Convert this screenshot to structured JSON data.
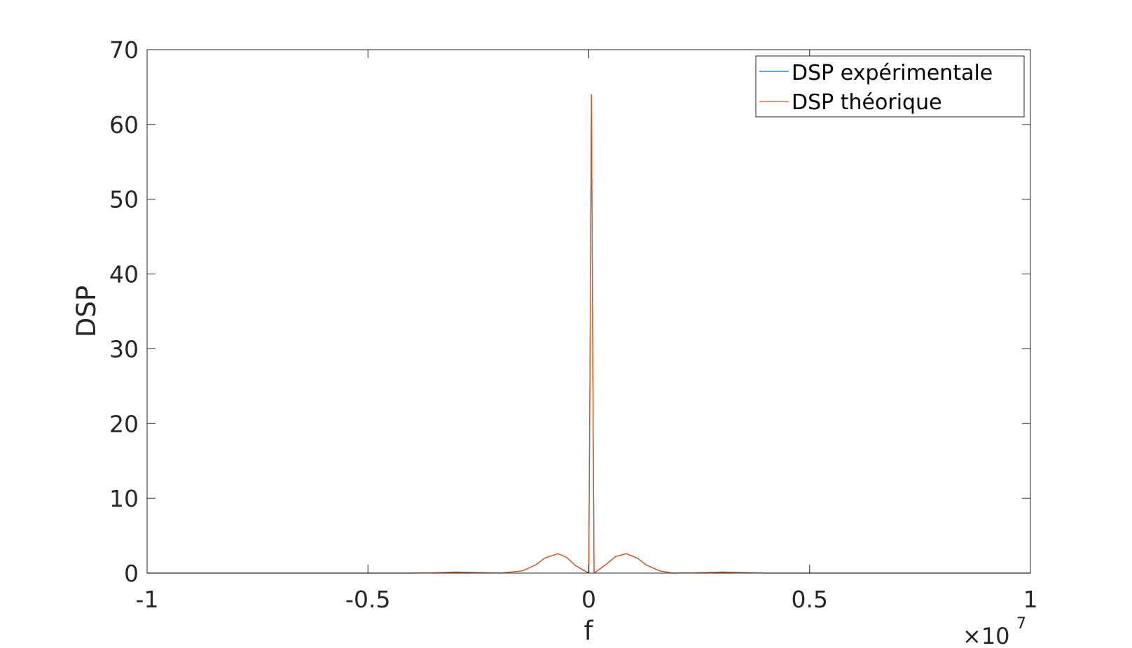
{
  "chart_data": {
    "type": "line",
    "xlabel": "f",
    "ylabel": "DSP",
    "x_exponent_label": {
      "times": "×10",
      "power": "7"
    },
    "xlim": [
      -1,
      1
    ],
    "ylim": [
      0,
      70
    ],
    "x_unit_multiplier": 10000000,
    "xticks": [
      -1,
      -0.5,
      0,
      0.5,
      1
    ],
    "xtick_labels": [
      "-1",
      "-0.5",
      "0",
      "0.5",
      "1"
    ],
    "yticks": [
      0,
      10,
      20,
      30,
      40,
      50,
      60,
      70
    ],
    "ytick_labels": [
      "0",
      "10",
      "20",
      "30",
      "40",
      "50",
      "60",
      "70"
    ],
    "grid": false,
    "legend_position": "top-right",
    "series": [
      {
        "name": "DSP expérimentale",
        "color": "#0072BD",
        "points": [
          [
            -1,
            0
          ],
          [
            -0.5,
            0
          ],
          [
            -0.4,
            0
          ],
          [
            -0.35,
            0.05
          ],
          [
            -0.3,
            0.15
          ],
          [
            -0.25,
            0.08
          ],
          [
            -0.2,
            0
          ],
          [
            -0.15,
            0.3
          ],
          [
            -0.12,
            1.1
          ],
          [
            -0.1,
            2.0
          ],
          [
            -0.07,
            2.6
          ],
          [
            -0.05,
            2.1
          ],
          [
            -0.03,
            1.0
          ],
          [
            0,
            0
          ],
          [
            0.003,
            30
          ],
          [
            0.006,
            64
          ],
          [
            0.009,
            30
          ],
          [
            0.012,
            0
          ],
          [
            0.04,
            1.2
          ],
          [
            0.06,
            2.2
          ],
          [
            0.085,
            2.6
          ],
          [
            0.11,
            2.0
          ],
          [
            0.13,
            1.1
          ],
          [
            0.16,
            0.3
          ],
          [
            0.19,
            0
          ],
          [
            0.25,
            0.05
          ],
          [
            0.3,
            0.15
          ],
          [
            0.35,
            0.08
          ],
          [
            0.4,
            0
          ],
          [
            0.5,
            0
          ],
          [
            1,
            0
          ]
        ]
      },
      {
        "name": "DSP théorique",
        "color": "#D95319",
        "points": [
          [
            -1,
            0
          ],
          [
            -0.5,
            0
          ],
          [
            -0.4,
            0
          ],
          [
            -0.35,
            0.05
          ],
          [
            -0.3,
            0.12
          ],
          [
            -0.25,
            0.06
          ],
          [
            -0.2,
            0
          ],
          [
            -0.15,
            0.3
          ],
          [
            -0.12,
            1.1
          ],
          [
            -0.1,
            2.0
          ],
          [
            -0.07,
            2.6
          ],
          [
            -0.05,
            2.1
          ],
          [
            -0.03,
            1.0
          ],
          [
            0,
            0
          ],
          [
            0.003,
            30
          ],
          [
            0.006,
            64
          ],
          [
            0.009,
            30
          ],
          [
            0.012,
            0
          ],
          [
            0.04,
            1.2
          ],
          [
            0.06,
            2.2
          ],
          [
            0.085,
            2.6
          ],
          [
            0.11,
            2.0
          ],
          [
            0.13,
            1.1
          ],
          [
            0.16,
            0.3
          ],
          [
            0.19,
            0
          ],
          [
            0.25,
            0.05
          ],
          [
            0.3,
            0.12
          ],
          [
            0.35,
            0.06
          ],
          [
            0.4,
            0
          ],
          [
            0.5,
            0
          ],
          [
            1,
            0
          ]
        ]
      }
    ]
  }
}
